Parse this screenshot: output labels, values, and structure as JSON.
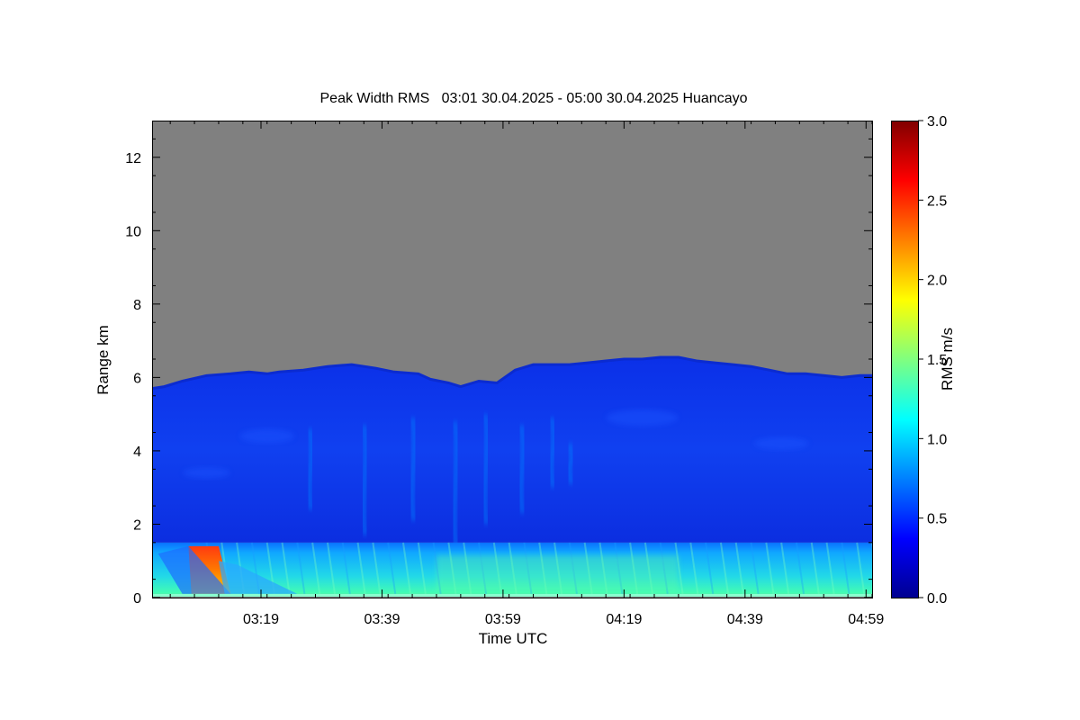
{
  "chart_data": {
    "type": "heatmap",
    "title": "Peak Width RMS   03:01 30.04.2025 - 05:00 30.04.2025 Huancayo",
    "xlabel": "Time UTC",
    "ylabel": "Range km",
    "colorbar_label": "RMS m/s",
    "x_start_min": 181,
    "x_end_min": 300,
    "x_ticks": [
      {
        "min": 199,
        "label": "03:19"
      },
      {
        "min": 219,
        "label": "03:39"
      },
      {
        "min": 239,
        "label": "03:59"
      },
      {
        "min": 259,
        "label": "04:19"
      },
      {
        "min": 279,
        "label": "04:39"
      },
      {
        "min": 299,
        "label": "04:59"
      }
    ],
    "ylim": [
      0,
      13
    ],
    "y_ticks": [
      0,
      2,
      4,
      6,
      8,
      10,
      12
    ],
    "colorbar_range": [
      0,
      3
    ],
    "colorbar_ticks": [
      "0.0",
      "0.5",
      "1.0",
      "1.5",
      "2.0",
      "2.5",
      "3.0"
    ],
    "no_data_color": "#808080",
    "echo_top_km": {
      "t_min": [
        181,
        183,
        186,
        190,
        194,
        197,
        200,
        202,
        206,
        210,
        214,
        218,
        221,
        225,
        227,
        230,
        232,
        235,
        238,
        241,
        244,
        247,
        250,
        253,
        256,
        259,
        262,
        265,
        268,
        271,
        274,
        277,
        280,
        283,
        286,
        289,
        292,
        295,
        298,
        300
      ],
      "km": [
        5.7,
        5.75,
        5.9,
        6.05,
        6.1,
        6.15,
        6.1,
        6.15,
        6.2,
        6.3,
        6.35,
        6.25,
        6.15,
        6.1,
        5.95,
        5.85,
        5.75,
        5.9,
        5.85,
        6.2,
        6.35,
        6.35,
        6.35,
        6.4,
        6.45,
        6.5,
        6.5,
        6.55,
        6.55,
        6.45,
        6.4,
        6.35,
        6.3,
        6.2,
        6.1,
        6.1,
        6.05,
        6.0,
        6.05,
        6.05
      ]
    },
    "layers": [
      {
        "name": "upper-cloud",
        "from_km": 1.5,
        "to_km": "echo_top",
        "rms_ms": 0.35
      },
      {
        "name": "boundary-layer",
        "from_km": 0.1,
        "to_km": 1.5,
        "rms_ms": 0.95
      },
      {
        "name": "convective-plumes",
        "t_min": [
          220,
          250
        ],
        "from_km": 1.5,
        "to_km": 5.0,
        "rms_ms": 0.75
      },
      {
        "name": "high-rms-patch",
        "t_min": [
          187,
          192
        ],
        "from_km": 0.1,
        "to_km": 1.4,
        "rms_ms": 2.4
      }
    ]
  }
}
